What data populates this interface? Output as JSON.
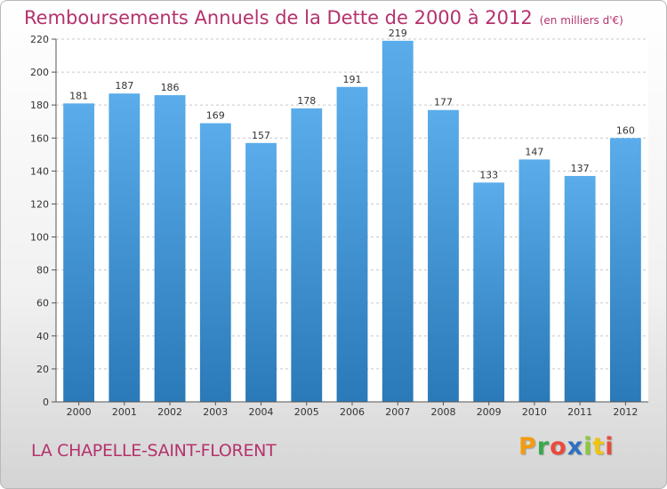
{
  "chart_data": {
    "type": "bar",
    "title": "Remboursements Annuels de la Dette de 2000 à 2012",
    "unit": "(en milliers d'€)",
    "categories": [
      "2000",
      "2001",
      "2002",
      "2003",
      "2004",
      "2005",
      "2006",
      "2007",
      "2008",
      "2009",
      "2010",
      "2011",
      "2012"
    ],
    "values": [
      181,
      187,
      186,
      169,
      157,
      178,
      191,
      219,
      177,
      133,
      147,
      137,
      160
    ],
    "ylim": [
      0,
      220
    ],
    "yticks": [
      0,
      20,
      40,
      60,
      80,
      100,
      120,
      140,
      160,
      180,
      200,
      220
    ],
    "grid": true,
    "bar_color": "#5aacea",
    "bar_color_bottom": "#2a79b8"
  },
  "location": "LA CHAPELLE-SAINT-FLORENT",
  "logo": "Proxiti"
}
